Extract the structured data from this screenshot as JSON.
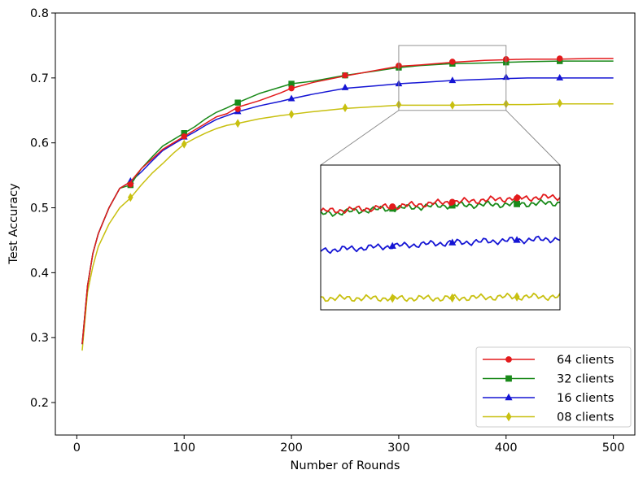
{
  "chart_data": {
    "type": "line",
    "title": "",
    "xlabel": "Number of Rounds",
    "ylabel": "Test Accuracy",
    "xlim": [
      -20,
      520
    ],
    "ylim": [
      0.15,
      0.8
    ],
    "xticks": [
      0,
      100,
      200,
      300,
      400,
      500
    ],
    "yticks": [
      0.2,
      0.3,
      0.4,
      0.5,
      0.6,
      0.7,
      0.8
    ],
    "xtick_labels": [
      "0",
      "100",
      "200",
      "300",
      "400",
      "500"
    ],
    "ytick_labels": [
      "0.2",
      "0.3",
      "0.4",
      "0.5",
      "0.6",
      "0.7",
      "0.8"
    ],
    "grid": false,
    "legend": {
      "position": "lower-right"
    },
    "inset": {
      "source_xlim": [
        300,
        400
      ],
      "source_ylim": [
        0.65,
        0.75
      ]
    },
    "series": [
      {
        "name": "64 clients",
        "color": "#e31a1c",
        "marker": "circle",
        "x": [
          5,
          10,
          15,
          20,
          30,
          40,
          50,
          60,
          70,
          80,
          90,
          100,
          110,
          120,
          130,
          140,
          150,
          170,
          190,
          200,
          220,
          250,
          280,
          300,
          320,
          350,
          380,
          400,
          420,
          450,
          480,
          500
        ],
        "y": [
          0.29,
          0.38,
          0.43,
          0.46,
          0.5,
          0.53,
          0.54,
          0.56,
          0.575,
          0.59,
          0.6,
          0.61,
          0.62,
          0.63,
          0.64,
          0.645,
          0.655,
          0.665,
          0.677,
          0.684,
          0.693,
          0.703,
          0.712,
          0.718,
          0.72,
          0.724,
          0.727,
          0.728,
          0.729,
          0.729,
          0.73,
          0.73
        ],
        "markers_x": [
          50,
          100,
          150,
          200,
          250,
          300,
          350,
          400,
          450
        ],
        "markers_y": [
          0.536,
          0.61,
          0.652,
          0.684,
          0.704,
          0.719,
          0.725,
          0.729,
          0.73
        ]
      },
      {
        "name": "32 clients",
        "color": "#1a8a1a",
        "marker": "square",
        "x": [
          5,
          10,
          15,
          20,
          30,
          40,
          50,
          60,
          70,
          80,
          90,
          100,
          110,
          120,
          130,
          140,
          150,
          170,
          190,
          200,
          220,
          250,
          280,
          300,
          320,
          350,
          380,
          400,
          420,
          450,
          480,
          500
        ],
        "y": [
          0.29,
          0.38,
          0.43,
          0.46,
          0.5,
          0.53,
          0.535,
          0.56,
          0.578,
          0.595,
          0.605,
          0.615,
          0.625,
          0.637,
          0.647,
          0.654,
          0.662,
          0.676,
          0.686,
          0.691,
          0.695,
          0.704,
          0.711,
          0.716,
          0.719,
          0.722,
          0.723,
          0.724,
          0.725,
          0.726,
          0.726,
          0.726
        ],
        "markers_x": [
          50,
          100,
          150,
          200,
          250,
          300,
          350,
          400,
          450
        ],
        "markers_y": [
          0.535,
          0.615,
          0.662,
          0.691,
          0.704,
          0.716,
          0.722,
          0.724,
          0.726
        ]
      },
      {
        "name": "16 clients",
        "color": "#1515d4",
        "marker": "triangle",
        "x": [
          5,
          10,
          15,
          20,
          30,
          40,
          50,
          60,
          70,
          80,
          90,
          100,
          110,
          120,
          130,
          140,
          150,
          170,
          190,
          200,
          220,
          250,
          280,
          300,
          320,
          350,
          380,
          400,
          420,
          450,
          480,
          500
        ],
        "y": [
          0.29,
          0.38,
          0.43,
          0.46,
          0.5,
          0.53,
          0.54,
          0.555,
          0.572,
          0.588,
          0.598,
          0.608,
          0.617,
          0.627,
          0.636,
          0.642,
          0.648,
          0.657,
          0.664,
          0.668,
          0.675,
          0.684,
          0.688,
          0.691,
          0.693,
          0.696,
          0.698,
          0.699,
          0.7,
          0.7,
          0.7,
          0.7
        ],
        "markers_x": [
          50,
          100,
          150,
          200,
          250,
          300,
          350,
          400,
          450
        ],
        "markers_y": [
          0.541,
          0.609,
          0.648,
          0.668,
          0.685,
          0.691,
          0.696,
          0.701,
          0.7
        ]
      },
      {
        "name": "08 clients",
        "color": "#c8c010",
        "marker": "diamond",
        "x": [
          5,
          10,
          15,
          20,
          30,
          40,
          50,
          60,
          70,
          80,
          90,
          100,
          110,
          120,
          130,
          140,
          150,
          170,
          190,
          200,
          220,
          250,
          280,
          300,
          320,
          350,
          380,
          400,
          420,
          450,
          480,
          500
        ],
        "y": [
          0.28,
          0.37,
          0.41,
          0.44,
          0.475,
          0.5,
          0.515,
          0.535,
          0.553,
          0.568,
          0.584,
          0.598,
          0.607,
          0.615,
          0.622,
          0.627,
          0.63,
          0.637,
          0.642,
          0.644,
          0.648,
          0.653,
          0.656,
          0.658,
          0.658,
          0.658,
          0.659,
          0.659,
          0.659,
          0.66,
          0.66,
          0.66
        ],
        "markers_x": [
          50,
          100,
          150,
          200,
          250,
          300,
          350,
          400,
          450
        ],
        "markers_y": [
          0.516,
          0.598,
          0.63,
          0.644,
          0.654,
          0.659,
          0.658,
          0.66,
          0.661
        ]
      }
    ]
  }
}
